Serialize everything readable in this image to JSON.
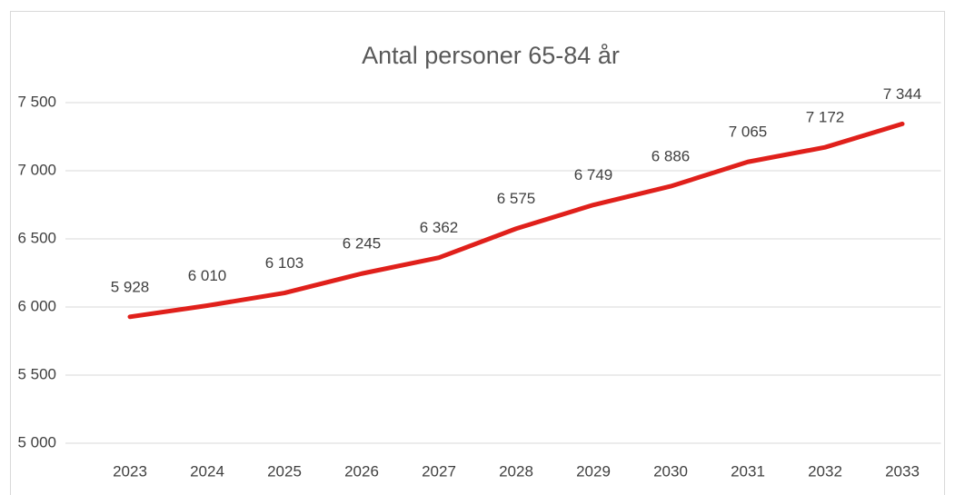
{
  "chart_data": {
    "type": "line",
    "title": "Antal personer 65-84 år",
    "categories": [
      "2023",
      "2024",
      "2025",
      "2026",
      "2027",
      "2028",
      "2029",
      "2030",
      "2031",
      "2032",
      "2033"
    ],
    "series": [
      {
        "name": "Antal personer 65-84 år",
        "color": "#e0201b",
        "values": [
          5928,
          6010,
          6103,
          6245,
          6362,
          6575,
          6749,
          6886,
          7065,
          7172,
          7344
        ],
        "value_labels": [
          "5 928",
          "6 010",
          "6 103",
          "6 245",
          "6 362",
          "6 575",
          "6 749",
          "6 886",
          "7 065",
          "7 172",
          "7 344"
        ]
      }
    ],
    "ylim": [
      5000,
      7500
    ],
    "yticks": [
      {
        "value": 5000,
        "label": "5 000"
      },
      {
        "value": 5500,
        "label": "5 500"
      },
      {
        "value": 6000,
        "label": "6 000"
      },
      {
        "value": 6500,
        "label": "6 500"
      },
      {
        "value": 7000,
        "label": "7 000"
      },
      {
        "value": 7500,
        "label": "7 500"
      }
    ],
    "grid": true
  }
}
